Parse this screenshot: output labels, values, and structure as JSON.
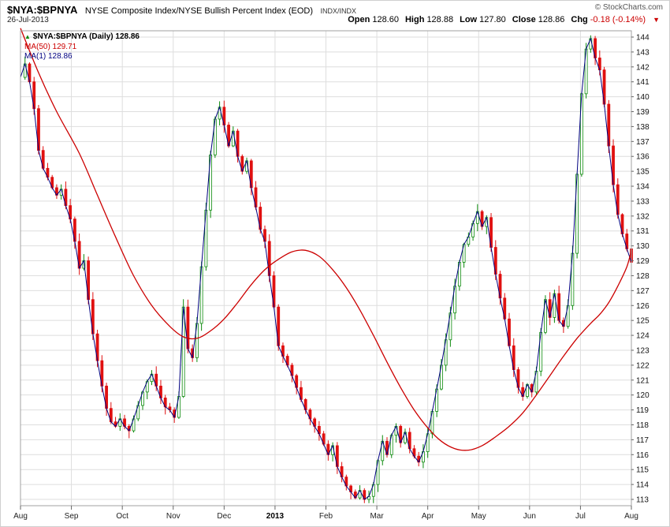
{
  "header": {
    "symbol": "$NYA:$BPNYA",
    "description": "NYSE Composite Index/NYSE Bullish Percent Index (EOD)",
    "exchange": "INDX/INDX",
    "copyright": "© StockCharts.com",
    "date": "26-Jul-2013",
    "quote": {
      "open_label": "Open",
      "open": "128.60",
      "high_label": "High",
      "high": "128.88",
      "low_label": "Low",
      "low": "127.80",
      "close_label": "Close",
      "close": "128.86",
      "chg_label": "Chg",
      "chg": "-0.18 (-0.14%)",
      "direction_icon": "▼"
    }
  },
  "legend": {
    "main": "$NYA:$BPNYA (Daily) 128.86",
    "ma50": "MA(50) 129.71",
    "ma1": "MA(1) 128.86"
  },
  "chart_data": {
    "type": "candlestick",
    "title": "$NYA:$BPNYA (Daily)",
    "x_axis": {
      "tick_labels": [
        "Aug",
        "Sep",
        "Oct",
        "Nov",
        "Dec",
        "2013",
        "Feb",
        "Mar",
        "Apr",
        "May",
        "Jun",
        "Jul",
        "Aug"
      ],
      "range_note": "daily bars, 26-Jul-2012 through 26-Jul-2013"
    },
    "y_axis": {
      "min": 113,
      "max": 144,
      "tick_step": 1,
      "side": "right"
    },
    "last_bar": {
      "open": 128.6,
      "high": 128.88,
      "low": 127.8,
      "close": 128.86,
      "chg": -0.18,
      "chg_pct": -0.14
    },
    "series": [
      {
        "name": "$NYA:$BPNYA close (MA(1))",
        "type": "line",
        "color": "#000080",
        "values": [
          141.3,
          142.2,
          141.0,
          139.2,
          136.4,
          135.2,
          134.6,
          133.9,
          133.4,
          133.8,
          132.7,
          131.8,
          130.3,
          128.5,
          129.0,
          126.4,
          124.1,
          122.3,
          120.6,
          119.1,
          118.2,
          117.9,
          118.4,
          117.9,
          117.6,
          118.4,
          119.3,
          120.2,
          120.9,
          121.4,
          120.6,
          119.8,
          119.2,
          119.0,
          118.5,
          119.9,
          125.9,
          123.1,
          122.5,
          124.8,
          128.6,
          132.4,
          136.1,
          138.5,
          139.3,
          138.1,
          136.7,
          137.7,
          136.0,
          135.0,
          135.7,
          133.9,
          132.6,
          131.1,
          130.3,
          128.0,
          125.9,
          123.3,
          122.6,
          122.0,
          121.3,
          120.5,
          119.7,
          119.0,
          118.4,
          117.9,
          117.4,
          116.7,
          116.0,
          116.6,
          115.2,
          114.5,
          113.9,
          113.5,
          113.1,
          113.6,
          113.0,
          113.2,
          114.0,
          115.6,
          116.9,
          116.0,
          117.3,
          117.9,
          116.8,
          117.5,
          116.4,
          115.9,
          115.5,
          116.2,
          117.4,
          118.9,
          120.4,
          122.0,
          123.7,
          125.5,
          127.3,
          128.9,
          130.1,
          130.6,
          131.5,
          132.3,
          131.3,
          131.9,
          129.9,
          128.1,
          126.5,
          125.1,
          123.3,
          121.7,
          120.5,
          119.9,
          120.7,
          120.2,
          121.6,
          124.2,
          126.4,
          125.2,
          126.8,
          125.0,
          124.6,
          126.0,
          129.5,
          134.8,
          140.2,
          143.2,
          143.9,
          142.6,
          141.8,
          139.5,
          136.7,
          134.1,
          132.1,
          130.8,
          129.8,
          128.9
        ]
      },
      {
        "name": "MA(50)",
        "type": "line",
        "color": "#cc0000",
        "points_index_value": [
          [
            0,
            144.6
          ],
          [
            4,
            141.6
          ],
          [
            8,
            139.0
          ],
          [
            13,
            136.2
          ],
          [
            17,
            133.4
          ],
          [
            21,
            130.6
          ],
          [
            25,
            128.0
          ],
          [
            29,
            126.0
          ],
          [
            33,
            124.6
          ],
          [
            36,
            123.9
          ],
          [
            39,
            123.8
          ],
          [
            42,
            124.3
          ],
          [
            45,
            125.1
          ],
          [
            48,
            126.2
          ],
          [
            51,
            127.4
          ],
          [
            54,
            128.4
          ],
          [
            57,
            129.1
          ],
          [
            60,
            129.6
          ],
          [
            63,
            129.7
          ],
          [
            66,
            129.3
          ],
          [
            69,
            128.4
          ],
          [
            72,
            127.2
          ],
          [
            75,
            125.7
          ],
          [
            78,
            124.0
          ],
          [
            81,
            122.2
          ],
          [
            84,
            120.5
          ],
          [
            87,
            119.0
          ],
          [
            90,
            117.8
          ],
          [
            93,
            116.9
          ],
          [
            96,
            116.4
          ],
          [
            99,
            116.3
          ],
          [
            102,
            116.6
          ],
          [
            105,
            117.2
          ],
          [
            108,
            117.9
          ],
          [
            111,
            118.8
          ],
          [
            114,
            120.0
          ],
          [
            117,
            121.3
          ],
          [
            120,
            122.6
          ],
          [
            123,
            123.8
          ],
          [
            126,
            124.8
          ],
          [
            128,
            125.4
          ],
          [
            130,
            126.2
          ],
          [
            132,
            127.3
          ],
          [
            134,
            128.6
          ],
          [
            135,
            129.7
          ]
        ]
      }
    ],
    "colors": {
      "candle_up": "#0b8a0b",
      "candle_down": "#e01010",
      "grid": "#dedede",
      "border": "#a0a0a0",
      "axis_text": "#111111",
      "tick": "#666666"
    },
    "legend_position": "top-left",
    "grid": true
  }
}
